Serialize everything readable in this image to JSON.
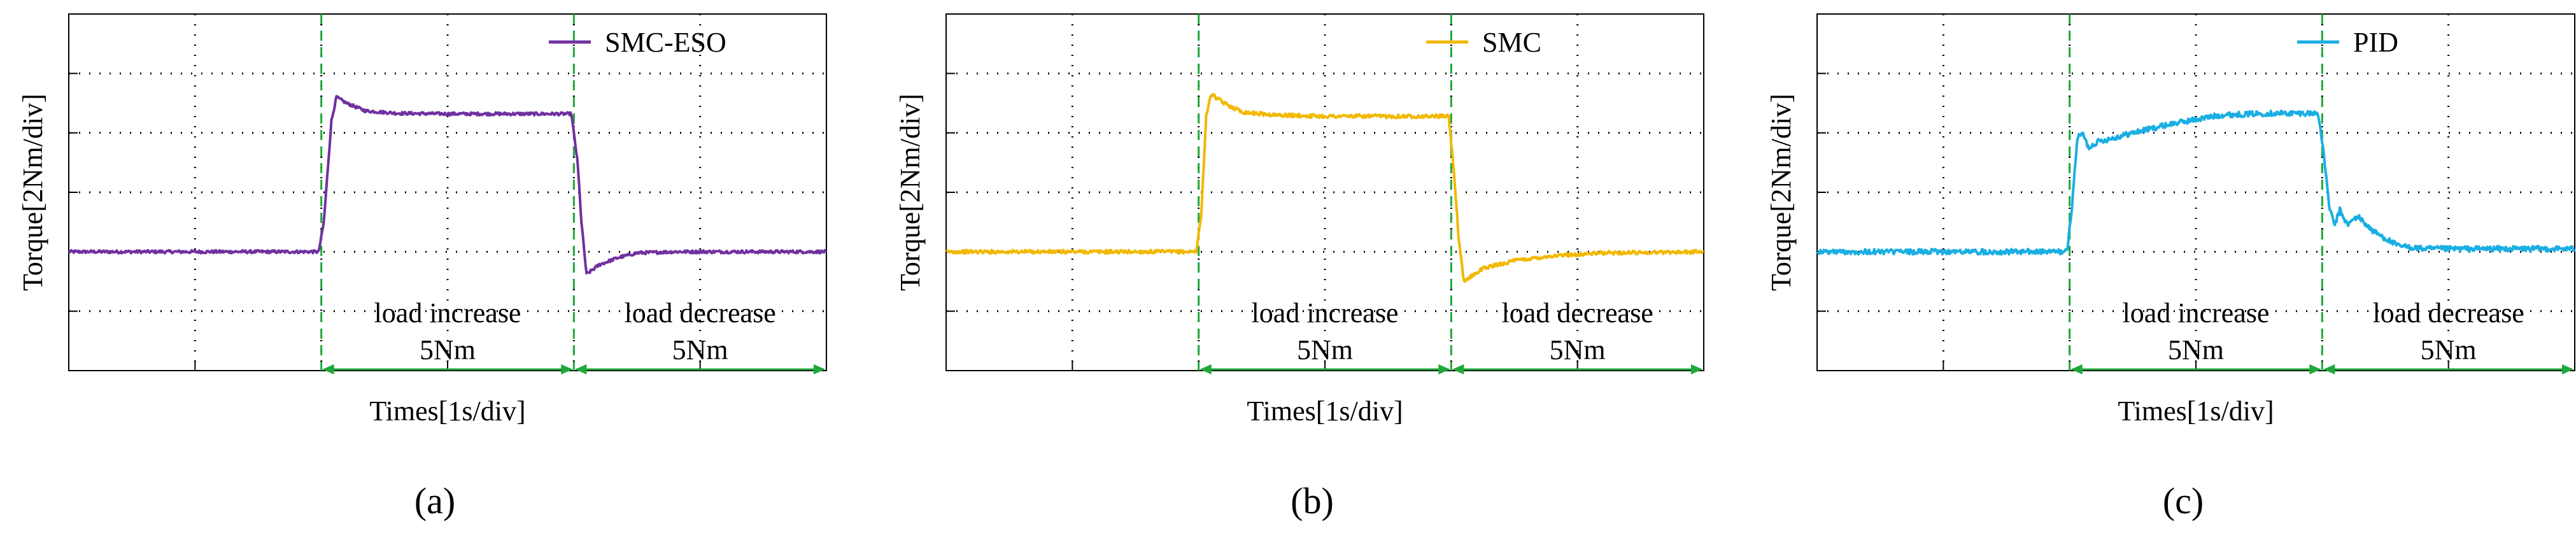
{
  "chart_data": [
    {
      "type": "line",
      "panel_label": "(a)",
      "legend": "SMC-ESO",
      "color": "#7030a0",
      "ylabel": "Torque[2Nm/div]",
      "xlabel": "Times[1s/div]",
      "xlim": [
        0,
        6
      ],
      "ylim": [
        0,
        6
      ],
      "x_divisions": 6,
      "y_divisions": 6,
      "grid": true,
      "events": [
        {
          "t": 2,
          "label_line1": "load increase",
          "label_line2": "5Nm"
        },
        {
          "t": 4,
          "label_line1": "load decrease",
          "label_line2": "5Nm"
        }
      ],
      "series": [
        {
          "name": "SMC-ESO",
          "t": [
            0,
            1.98,
            2.02,
            2.08,
            2.12,
            2.2,
            2.35,
            2.6,
            3.0,
            3.5,
            3.98,
            4.03,
            4.06,
            4.1,
            4.2,
            4.35,
            4.5,
            4.8,
            5.2,
            6.0
          ],
          "y": [
            2.0,
            2.0,
            2.5,
            4.2,
            4.6,
            4.5,
            4.37,
            4.33,
            4.32,
            4.32,
            4.32,
            3.5,
            2.5,
            1.62,
            1.78,
            1.9,
            1.98,
            2.0,
            2.0,
            2.0
          ],
          "noise": 0.025
        }
      ]
    },
    {
      "type": "line",
      "panel_label": "(b)",
      "legend": "SMC",
      "color": "#f2b800",
      "ylabel": "Torque[2Nm/div]",
      "xlabel": "Times[1s/div]",
      "xlim": [
        0,
        6
      ],
      "ylim": [
        0,
        6
      ],
      "x_divisions": 6,
      "y_divisions": 6,
      "grid": true,
      "events": [
        {
          "t": 2,
          "label_line1": "load increase",
          "label_line2": "5Nm"
        },
        {
          "t": 4,
          "label_line1": "load decrease",
          "label_line2": "5Nm"
        }
      ],
      "series": [
        {
          "name": "SMC",
          "t": [
            0,
            1.98,
            2.02,
            2.06,
            2.1,
            2.2,
            2.35,
            2.6,
            3.0,
            3.5,
            3.98,
            4.02,
            4.06,
            4.1,
            4.25,
            4.5,
            4.8,
            5.2,
            6.0
          ],
          "y": [
            2.0,
            2.0,
            2.6,
            4.3,
            4.65,
            4.5,
            4.35,
            4.3,
            4.28,
            4.28,
            4.28,
            3.4,
            2.2,
            1.5,
            1.72,
            1.85,
            1.93,
            1.98,
            2.0
          ],
          "noise": 0.03
        }
      ]
    },
    {
      "type": "line",
      "panel_label": "(c)",
      "legend": "PID",
      "color": "#1aaee3",
      "ylabel": "Torque[2Nm/div]",
      "xlabel": "Times[1s/div]",
      "xlim": [
        0,
        6
      ],
      "ylim": [
        0,
        6
      ],
      "x_divisions": 6,
      "y_divisions": 6,
      "grid": true,
      "events": [
        {
          "t": 2,
          "label_line1": "load increase",
          "label_line2": "5Nm"
        },
        {
          "t": 4,
          "label_line1": "load decrease",
          "label_line2": "5Nm"
        }
      ],
      "series": [
        {
          "name": "PID",
          "t": [
            0,
            1.98,
            2.02,
            2.06,
            2.1,
            2.15,
            2.22,
            2.32,
            2.5,
            2.8,
            3.2,
            3.6,
            3.97,
            4.02,
            4.06,
            4.1,
            4.14,
            4.2,
            4.28,
            4.4,
            4.6,
            4.8,
            5.2,
            6.0
          ],
          "y": [
            2.0,
            2.0,
            2.8,
            3.9,
            4.0,
            3.75,
            3.85,
            3.9,
            4.0,
            4.15,
            4.3,
            4.33,
            4.33,
            3.5,
            2.7,
            2.45,
            2.7,
            2.45,
            2.6,
            2.35,
            2.1,
            2.05,
            2.05,
            2.05
          ],
          "noise": 0.045
        }
      ]
    }
  ]
}
